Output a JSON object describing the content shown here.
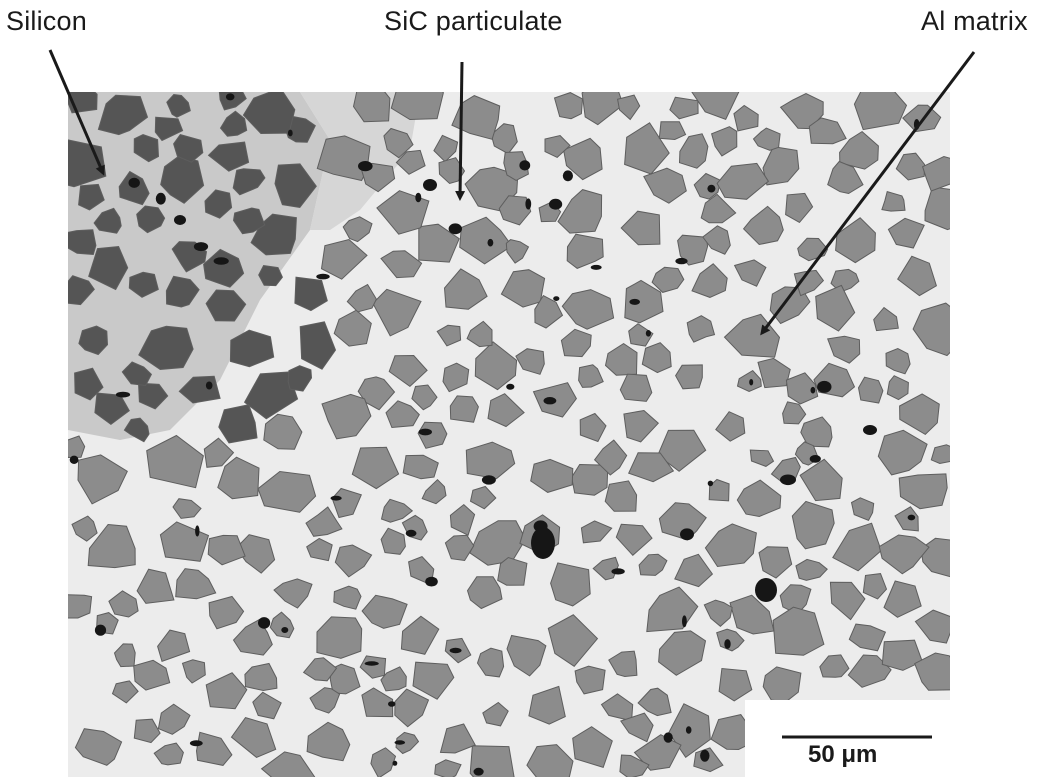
{
  "labels": {
    "silicon": "Silicon",
    "sic": "SiC particulate",
    "al_matrix": "Al matrix"
  },
  "scale_bar": {
    "value": "50",
    "unit": "μm"
  },
  "colors": {
    "background": "#ffffff",
    "matrix": "#ebebeb",
    "particle": "#8c8c8c",
    "particle_dark": "#555555",
    "silicon_region": "#c6c6c6",
    "void": "#161616",
    "ink": "#1a1a1a"
  }
}
